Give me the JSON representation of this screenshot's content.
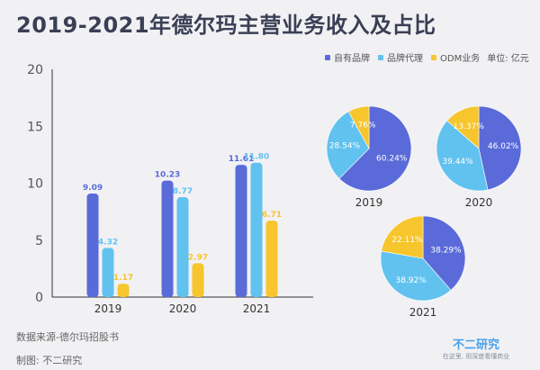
{
  "title": "2019-2021年德尔玛主营业务收入及占比",
  "legend": {
    "items": [
      "自有品牌",
      "品牌代理",
      "ODM业务"
    ],
    "unit": "单位: 亿元"
  },
  "colors": {
    "own_brand": "#5a6bd9",
    "agency": "#62c2ef",
    "odm": "#f7c52c",
    "axis": "#333333",
    "background": "#f1f1f4"
  },
  "footer": {
    "source": "数据来源-德尔玛招股书",
    "made_by": "制图: 不二研究"
  },
  "watermark": {
    "brand": "不二研究",
    "slogan": "在这里, 用深度看懂商业"
  },
  "chart_data": [
    {
      "type": "bar",
      "categories": [
        "2019",
        "2020",
        "2021"
      ],
      "series": [
        {
          "name": "自有品牌",
          "values": [
            9.09,
            10.23,
            11.61
          ]
        },
        {
          "name": "品牌代理",
          "values": [
            4.32,
            8.77,
            11.8
          ]
        },
        {
          "name": "ODM业务",
          "values": [
            1.17,
            2.97,
            6.71
          ]
        }
      ],
      "value_labels": [
        [
          "9.09",
          "10.23",
          "11.61"
        ],
        [
          "4.32",
          "8.77",
          "11.80"
        ],
        [
          "1.17",
          "2.97",
          "6.71"
        ]
      ],
      "ylim": [
        0,
        20
      ],
      "yticks": [
        "0",
        "5",
        "10",
        "15",
        "20"
      ],
      "title": "",
      "xlabel": "",
      "ylabel": ""
    },
    {
      "type": "pie",
      "title": "2019",
      "labels": [
        "自有品牌",
        "品牌代理",
        "ODM业务"
      ],
      "values": [
        60.24,
        28.54,
        7.76
      ],
      "value_labels": [
        "60.24%",
        "28.54%",
        "7.76%"
      ]
    },
    {
      "type": "pie",
      "title": "2020",
      "labels": [
        "自有品牌",
        "品牌代理",
        "ODM业务"
      ],
      "values": [
        46.02,
        39.44,
        13.37
      ],
      "value_labels": [
        "46.02%",
        "39.44%",
        "13.37%"
      ]
    },
    {
      "type": "pie",
      "title": "2021",
      "labels": [
        "自有品牌",
        "品牌代理",
        "ODM业务"
      ],
      "values": [
        38.29,
        38.92,
        22.11
      ],
      "value_labels": [
        "38.29%",
        "38.92%",
        "22.11%"
      ]
    }
  ]
}
